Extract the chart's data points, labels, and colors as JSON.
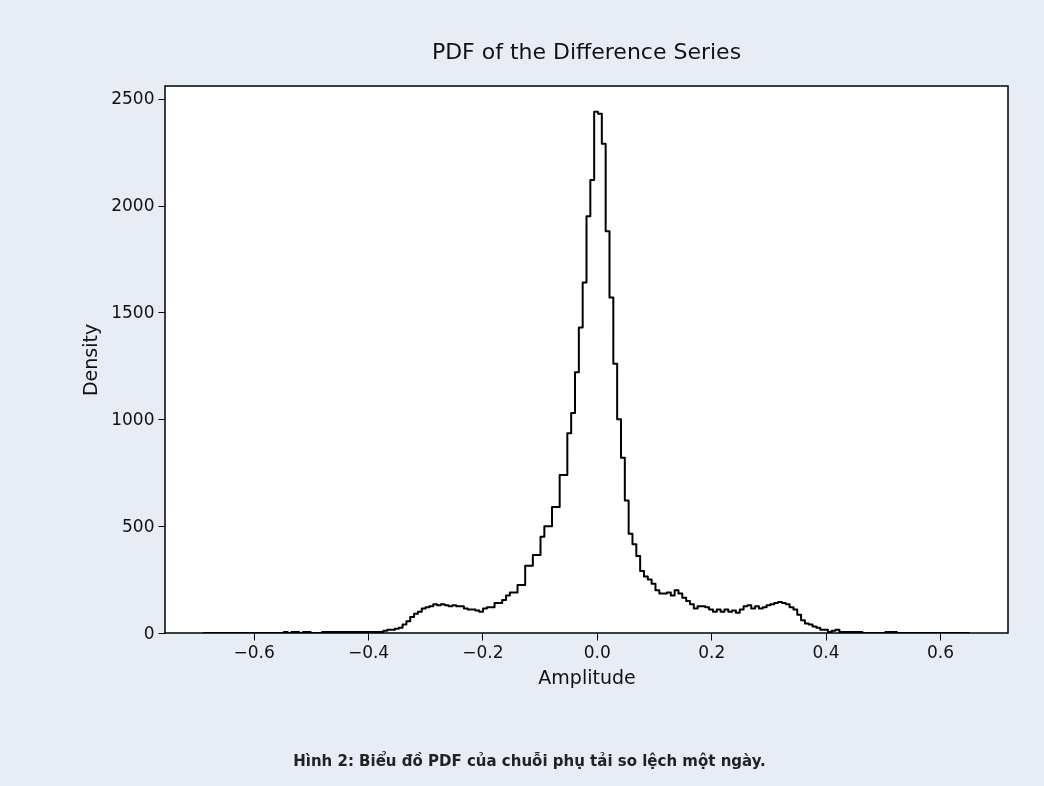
{
  "chart_data": {
    "type": "histogram",
    "title": "PDF of the Difference Series",
    "xlabel": "Amplitude",
    "ylabel": "Density",
    "annotations": [
      "Hình 2: Biểu đồ PDF của chuỗi phụ tải so lệch một ngày."
    ],
    "bins": [
      -0.688,
      -0.6813,
      -0.6746,
      -0.6679,
      -0.6612,
      -0.6545,
      -0.6478,
      -0.6411,
      -0.6344,
      -0.6277,
      -0.621,
      -0.6143,
      -0.6076,
      -0.6009,
      -0.5942,
      -0.5875,
      -0.5808,
      -0.5741,
      -0.5674,
      -0.5607,
      -0.554,
      -0.5473,
      -0.5406,
      -0.5339,
      -0.5272,
      -0.5205,
      -0.5138,
      -0.5071,
      -0.5004,
      -0.4937,
      -0.487,
      -0.4803,
      -0.4736,
      -0.4669,
      -0.4602,
      -0.4535,
      -0.4468,
      -0.4401,
      -0.4334,
      -0.4267,
      -0.42,
      -0.4133,
      -0.4066,
      -0.3999,
      -0.3932,
      -0.3865,
      -0.3798,
      -0.3731,
      -0.3664,
      -0.3597,
      -0.353,
      -0.3463,
      -0.3396,
      -0.3329,
      -0.3262,
      -0.3195,
      -0.3128,
      -0.3061,
      -0.2994,
      -0.2927,
      -0.286,
      -0.2793,
      -0.2726,
      -0.2659,
      -0.2592,
      -0.2525,
      -0.2458,
      -0.2391,
      -0.2324,
      -0.2257,
      -0.219,
      -0.2123,
      -0.2056,
      -0.1989,
      -0.1922,
      -0.1855,
      -0.1788,
      -0.1721,
      -0.1654,
      -0.1587,
      -0.152,
      -0.1453,
      -0.1386,
      -0.1319,
      -0.1252,
      -0.1185,
      -0.1118,
      -0.1051,
      -0.0984,
      -0.0917,
      -0.085,
      -0.0783,
      -0.0716,
      -0.0649,
      -0.0582,
      -0.0515,
      -0.0448,
      -0.0381,
      -0.0314,
      -0.0247,
      -0.018,
      -0.0113,
      -0.0046,
      0.0021,
      0.0088,
      0.0155,
      0.0222,
      0.0289,
      0.0356,
      0.0423,
      0.049,
      0.0557,
      0.0624,
      0.0691,
      0.0758,
      0.0825,
      0.0892,
      0.0959,
      0.1026,
      0.1093,
      0.116,
      0.1227,
      0.1294,
      0.1361,
      0.1428,
      0.1495,
      0.1562,
      0.1629,
      0.1696,
      0.1763,
      0.183,
      0.1897,
      0.1964,
      0.2031,
      0.2098,
      0.2165,
      0.2232,
      0.2299,
      0.2366,
      0.2433,
      0.25,
      0.2567,
      0.2634,
      0.2701,
      0.2768,
      0.2835,
      0.2902,
      0.2969,
      0.3036,
      0.3103,
      0.317,
      0.3237,
      0.3304,
      0.3371,
      0.3438,
      0.3505,
      0.3572,
      0.3639,
      0.3706,
      0.3773,
      0.384,
      0.3907,
      0.3974,
      0.4041,
      0.4108,
      0.4175,
      0.4242,
      0.4309,
      0.4376,
      0.4443,
      0.451,
      0.4577,
      0.4644,
      0.4711,
      0.4778,
      0.4845,
      0.4912,
      0.4979,
      0.5046,
      0.5113,
      0.518,
      0.5247,
      0.5314,
      0.5381,
      0.5448,
      0.5515,
      0.5582,
      0.5649,
      0.5716,
      0.5783,
      0.585,
      0.5917,
      0.5984,
      0.6051,
      0.6118,
      0.6185,
      0.6252,
      0.6319,
      0.6386,
      0.6453,
      0.652
    ],
    "values": [
      0,
      0,
      0,
      0,
      0,
      0,
      0,
      0,
      0,
      0,
      0,
      0,
      0,
      0,
      0,
      0,
      0,
      0,
      0,
      0,
      0,
      5,
      0,
      5,
      5,
      0,
      5,
      5,
      0,
      0,
      0,
      5,
      5,
      5,
      5,
      5,
      5,
      5,
      5,
      5,
      5,
      5,
      5,
      5,
      5,
      5,
      5,
      10,
      15,
      15,
      20,
      25,
      40,
      55,
      75,
      90,
      100,
      115,
      120,
      125,
      135,
      130,
      135,
      130,
      125,
      130,
      125,
      125,
      115,
      110,
      110,
      105,
      100,
      115,
      120,
      120,
      140,
      140,
      155,
      175,
      190,
      190,
      225,
      225,
      315,
      315,
      365,
      365,
      450,
      500,
      500,
      590,
      590,
      740,
      740,
      935,
      1030,
      1220,
      1430,
      1640,
      1950,
      2120,
      2440,
      2430,
      2290,
      1880,
      1570,
      1260,
      1000,
      820,
      620,
      465,
      415,
      360,
      290,
      265,
      250,
      230,
      200,
      185,
      185,
      190,
      175,
      200,
      185,
      165,
      150,
      135,
      115,
      125,
      125,
      120,
      110,
      100,
      110,
      100,
      110,
      100,
      105,
      95,
      110,
      125,
      130,
      115,
      125,
      115,
      120,
      130,
      135,
      140,
      145,
      140,
      135,
      120,
      110,
      85,
      60,
      45,
      40,
      30,
      25,
      15,
      15,
      5,
      10,
      15,
      5,
      5,
      5,
      5,
      5,
      5,
      0,
      0,
      0,
      0,
      0,
      0,
      5,
      5,
      5,
      0,
      0,
      0,
      0,
      0,
      0,
      0,
      0,
      0,
      0,
      0,
      0,
      0,
      0,
      0,
      0,
      0,
      0,
      0
    ],
    "color": "#000000",
    "xlim": [
      -0.755,
      0.719
    ],
    "ylim": [
      0,
      2560
    ],
    "xticks": [
      {
        "value": -0.6,
        "label": "−0.6"
      },
      {
        "value": -0.4,
        "label": "−0.4"
      },
      {
        "value": -0.2,
        "label": "−0.2"
      },
      {
        "value": 0,
        "label": "0.0"
      },
      0.2,
      0.4,
      0.6
    ],
    "yticks": [
      0,
      500,
      1000,
      1500,
      2000,
      2500
    ],
    "grid": false
  }
}
